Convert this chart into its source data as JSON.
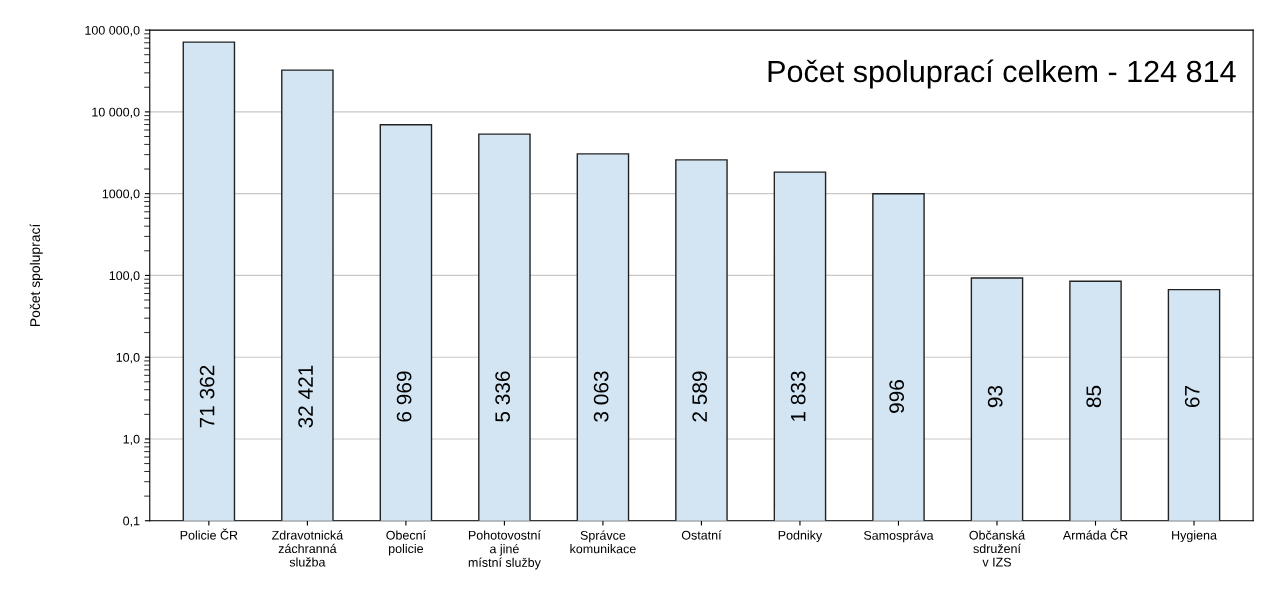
{
  "chart_data": {
    "type": "bar",
    "ylabel": "Počet spoluprací",
    "annotations": [
      "Počet spoluprací celkem - 124 814"
    ],
    "categories": [
      "Policie ČR",
      "Zdravotnická\nzáchranná\nslužba",
      "Obecní\npolicie",
      "Pohotovostní\na jiné\nmístní služby",
      "Správce\nkomunikace",
      "Ostatní",
      "Podniky",
      "Samospráva",
      "Občanská\nsdružení\nv IZS",
      "Armáda ČR",
      "Hygiena"
    ],
    "values": [
      71362,
      32421,
      6969,
      5336,
      3063,
      2589,
      1833,
      996,
      93,
      85,
      67
    ],
    "value_labels": [
      "71 362",
      "32 421",
      "6 969",
      "5 336",
      "3 063",
      "2 589",
      "1 833",
      "996",
      "93",
      "85",
      "67"
    ],
    "color": "#d3e5f2",
    "log": "y",
    "ylim": [
      0.1,
      100000
    ],
    "yticks": [
      {
        "value": 0.1,
        "label": "0,1"
      },
      {
        "value": 1,
        "label": "1,0"
      },
      {
        "value": 10,
        "label": "10,0"
      },
      {
        "value": 100,
        "label": "100,0"
      },
      {
        "value": 1000,
        "label": "1000,0"
      },
      {
        "value": 10000,
        "label": "10 000,0"
      },
      {
        "value": 100000,
        "label": "100 000,0"
      }
    ],
    "grid": "y",
    "legend": false
  }
}
